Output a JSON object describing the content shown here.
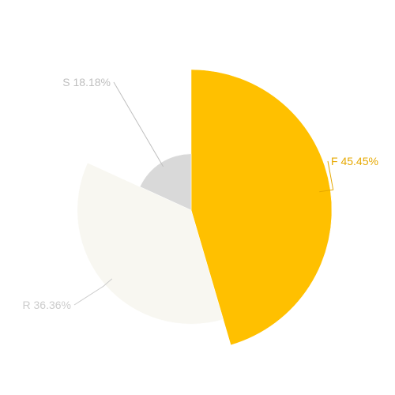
{
  "chart_data": {
    "type": "pie",
    "variant": "rose",
    "title": "",
    "slices": [
      {
        "name": "F",
        "value": 45.45,
        "label": "F 45.45%",
        "color": "#FFC000",
        "label_color": "#E6A800",
        "relative_radius": 1.0
      },
      {
        "name": "R",
        "value": 36.36,
        "label": "R 36.36%",
        "color": "#F8F7F1",
        "label_color": "#CCCCCC",
        "relative_radius": 0.81
      },
      {
        "name": "S",
        "value": 18.18,
        "label": "S 18.18%",
        "color": "#D9D9D9",
        "label_color": "#BFBFBF",
        "relative_radius": 0.4
      }
    ],
    "start_angle_deg": 0,
    "direction": "clockwise",
    "legend": "none"
  }
}
